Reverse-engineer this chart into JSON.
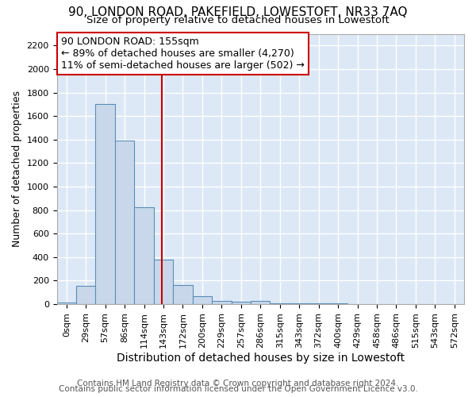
{
  "title": "90, LONDON ROAD, PAKEFIELD, LOWESTOFT, NR33 7AQ",
  "subtitle": "Size of property relative to detached houses in Lowestoft",
  "xlabel": "Distribution of detached houses by size in Lowestoft",
  "ylabel": "Number of detached properties",
  "bar_labels": [
    "0sqm",
    "29sqm",
    "57sqm",
    "86sqm",
    "114sqm",
    "143sqm",
    "172sqm",
    "200sqm",
    "229sqm",
    "257sqm",
    "286sqm",
    "315sqm",
    "343sqm",
    "372sqm",
    "400sqm",
    "429sqm",
    "458sqm",
    "486sqm",
    "515sqm",
    "543sqm",
    "572sqm"
  ],
  "bar_values": [
    15,
    155,
    1700,
    1390,
    825,
    380,
    160,
    65,
    25,
    20,
    25,
    5,
    5,
    5,
    10,
    0,
    0,
    0,
    0,
    0,
    0
  ],
  "bar_color": "#c8d8ea",
  "bar_edge_color": "#5b8db8",
  "ylim": [
    0,
    2300
  ],
  "yticks": [
    0,
    200,
    400,
    600,
    800,
    1000,
    1200,
    1400,
    1600,
    1800,
    2000,
    2200
  ],
  "property_line_color": "#cc0000",
  "annotation_text": "90 LONDON ROAD: 155sqm\n← 89% of detached houses are smaller (4,270)\n11% of semi-detached houses are larger (502) →",
  "annotation_box_color": "#ffffff",
  "annotation_box_edge_color": "#cc0000",
  "footer_line1": "Contains HM Land Registry data © Crown copyright and database right 2024.",
  "footer_line2": "Contains public sector information licensed under the Open Government Licence v3.0.",
  "background_color": "#ffffff",
  "plot_bg_color": "#dce8f5",
  "grid_color": "#ffffff",
  "title_fontsize": 11,
  "subtitle_fontsize": 9.5,
  "xlabel_fontsize": 10,
  "ylabel_fontsize": 9,
  "footer_fontsize": 7.5,
  "tick_fontsize": 8
}
